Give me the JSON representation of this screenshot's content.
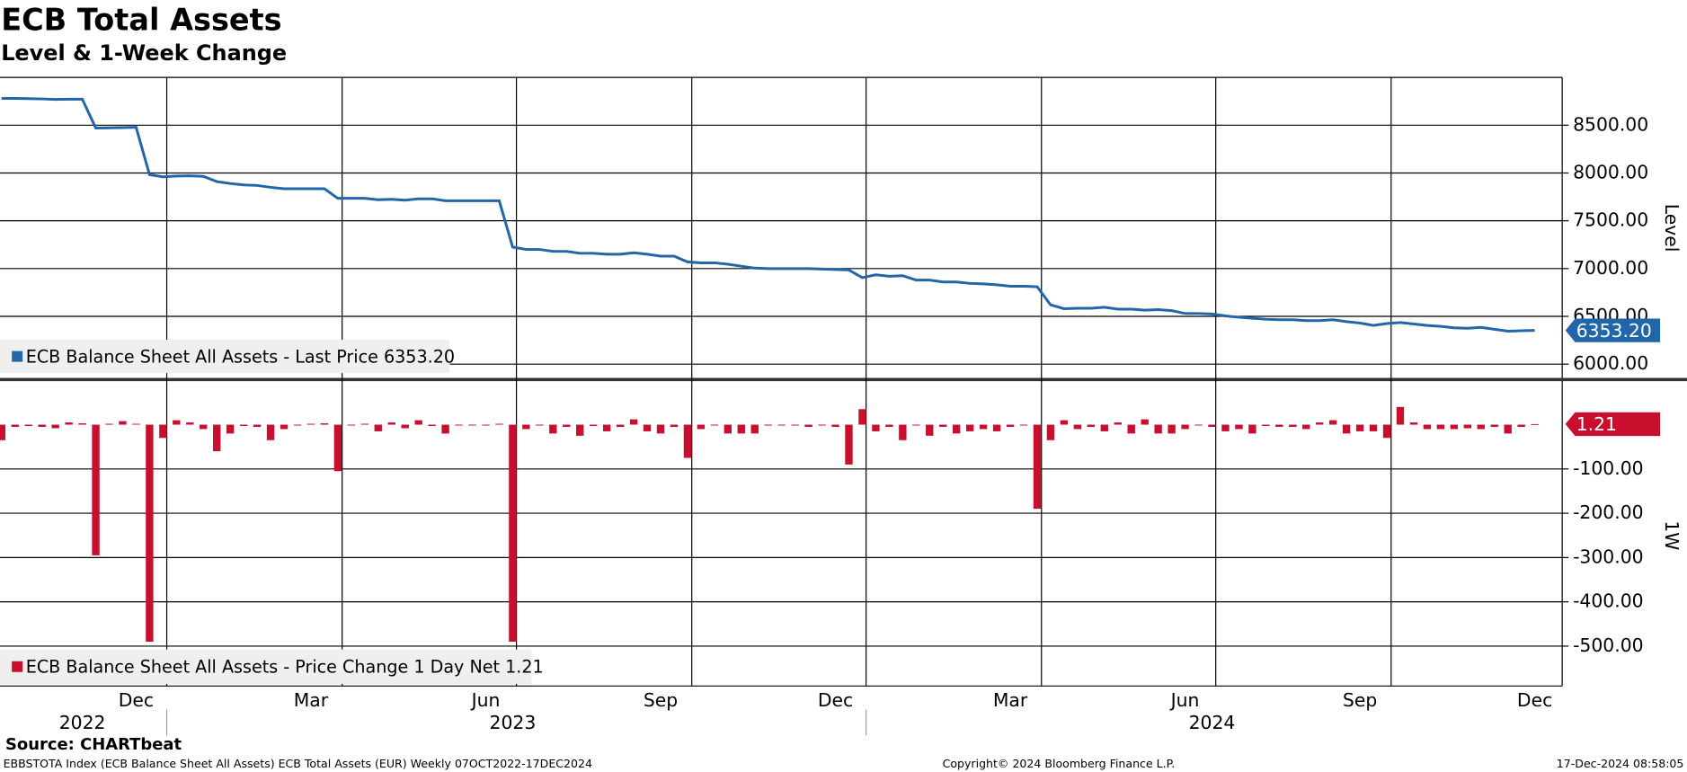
{
  "chart_data": [
    {
      "type": "line",
      "title": "ECB Total Assets",
      "subtitle": "Level & 1-Week Change",
      "y_label": "Level",
      "ylim": [
        5850,
        9000
      ],
      "yticks": [
        {
          "value": 6000,
          "label": "6000.00"
        },
        {
          "value": 6500,
          "label": "6500.00"
        },
        {
          "value": 7000,
          "label": "7000.00"
        },
        {
          "value": 7500,
          "label": "7500.00"
        },
        {
          "value": 8000,
          "label": "8000.00"
        },
        {
          "value": 8500,
          "label": "8500.00"
        }
      ],
      "grid": true,
      "series": [
        {
          "name": "ECB Balance Sheet All Assets - Last Price 6353.20",
          "color": "#2166a8",
          "last_value_label": "6353.20",
          "values": [
            8780,
            8780,
            8778,
            8775,
            8770,
            8772,
            8772,
            8470,
            8472,
            8475,
            8478,
            7982,
            7960,
            7968,
            7970,
            7965,
            7910,
            7890,
            7875,
            7870,
            7850,
            7835,
            7835,
            7835,
            7835,
            7735,
            7735,
            7735,
            7720,
            7725,
            7715,
            7730,
            7730,
            7710,
            7710,
            7710,
            7710,
            7710,
            7225,
            7200,
            7200,
            7180,
            7180,
            7160,
            7160,
            7150,
            7150,
            7165,
            7150,
            7130,
            7130,
            7070,
            7060,
            7060,
            7045,
            7025,
            7005,
            7000,
            7000,
            7000,
            7000,
            6995,
            6990,
            6985,
            6905,
            6935,
            6920,
            6925,
            6880,
            6880,
            6860,
            6860,
            6845,
            6840,
            6830,
            6815,
            6815,
            6810,
            6620,
            6580,
            6585,
            6585,
            6595,
            6575,
            6575,
            6565,
            6570,
            6560,
            6530,
            6530,
            6525,
            6505,
            6490,
            6480,
            6470,
            6465,
            6465,
            6455,
            6455,
            6465,
            6445,
            6430,
            6405,
            6425,
            6435,
            6420,
            6405,
            6395,
            6380,
            6375,
            6385,
            6365,
            6345,
            6350,
            6353.2
          ]
        }
      ]
    },
    {
      "type": "bar",
      "y_label": "1W",
      "categories": [
        null,
        null,
        null,
        null,
        null,
        null,
        null,
        null,
        null,
        null,
        "Dec",
        null,
        null,
        null,
        null,
        null,
        null,
        null,
        null,
        null,
        null,
        null,
        null,
        "Mar",
        null,
        null,
        null,
        null,
        null,
        null,
        null,
        null,
        null,
        null,
        null,
        null,
        "Jun",
        null,
        null,
        null,
        null,
        null,
        null,
        null,
        null,
        null,
        null,
        null,
        null,
        "Sep",
        null,
        null,
        null,
        null,
        null,
        null,
        null,
        null,
        null,
        null,
        null,
        null,
        "Dec",
        null,
        null,
        null,
        null,
        null,
        null,
        null,
        null,
        null,
        null,
        null,
        null,
        "Mar",
        null,
        null,
        null,
        null,
        null,
        null,
        null,
        null,
        null,
        null,
        null,
        null,
        "Jun",
        null,
        null,
        null,
        null,
        null,
        null,
        null,
        null,
        null,
        null,
        null,
        null,
        "Sep",
        null,
        null,
        null,
        null,
        null,
        null,
        null,
        null,
        null,
        null,
        null,
        null,
        "Dec"
      ],
      "year_labels": [
        null,
        null,
        null,
        null,
        null,
        null,
        "2022",
        null,
        null,
        null,
        null,
        null,
        null,
        null,
        null,
        null,
        null,
        null,
        null,
        null,
        null,
        null,
        null,
        null,
        null,
        null,
        null,
        null,
        null,
        null,
        null,
        null,
        null,
        null,
        null,
        null,
        null,
        null,
        "2023",
        null,
        null,
        null,
        null,
        null,
        null,
        null,
        null,
        null,
        null,
        null,
        null,
        null,
        null,
        null,
        null,
        null,
        null,
        null,
        null,
        null,
        null,
        null,
        null,
        null,
        null,
        null,
        null,
        null,
        null,
        null,
        null,
        null,
        null,
        null,
        null,
        null,
        null,
        null,
        null,
        null,
        null,
        null,
        null,
        null,
        null,
        null,
        null,
        null,
        null,
        null,
        "2024",
        null,
        null,
        null,
        null,
        null,
        null,
        null,
        null,
        null,
        null,
        null,
        null,
        null,
        null,
        null,
        null,
        null,
        null,
        null,
        null,
        null,
        null,
        null
      ],
      "ylim": [
        -590,
        97
      ],
      "yticks": [
        {
          "value": -100,
          "label": "-100.00"
        },
        {
          "value": -200,
          "label": "-200.00"
        },
        {
          "value": -300,
          "label": "-300.00"
        },
        {
          "value": -400,
          "label": "-400.00"
        },
        {
          "value": -500,
          "label": "-500.00"
        }
      ],
      "grid": true,
      "series": [
        {
          "name": "ECB Balance Sheet All Assets - Price Change 1 Day Net 1.21",
          "color": "#c8102e",
          "last_value_label": "1.21",
          "values": [
            -35,
            -5,
            -3,
            -5,
            -8,
            5,
            3,
            -295,
            2,
            8,
            2,
            -490,
            -30,
            10,
            5,
            -10,
            -60,
            -20,
            -3,
            -5,
            -35,
            -10,
            0,
            2,
            3,
            -105,
            0,
            2,
            -15,
            5,
            -8,
            10,
            -3,
            -20,
            -2,
            -2,
            -2,
            2,
            -490,
            -10,
            -2,
            -20,
            -5,
            -25,
            -3,
            -15,
            -5,
            12,
            -15,
            -20,
            -5,
            -75,
            -10,
            -2,
            -20,
            -20,
            -20,
            -2,
            0,
            -2,
            -5,
            -2,
            -5,
            -90,
            35,
            -15,
            -5,
            -35,
            0,
            -25,
            -5,
            -20,
            -15,
            -10,
            -15,
            -5,
            -2,
            -190,
            -35,
            10,
            -10,
            -5,
            -15,
            5,
            -20,
            12,
            -20,
            -20,
            -10,
            0,
            -5,
            -15,
            -10,
            -20,
            -3,
            -5,
            -5,
            -10,
            5,
            10,
            -20,
            -15,
            -15,
            -30,
            40,
            5,
            -10,
            -10,
            -10,
            -8,
            -10,
            -5,
            -20,
            -5,
            1.21
          ]
        }
      ]
    }
  ],
  "source": "Source: CHARTbeat",
  "footer": {
    "left": "EBBSTOTA Index (ECB Balance Sheet All Assets) ECB Total Assets (EUR)  Weekly 07OCT2022-17DEC2024",
    "center": "Copyright© 2024 Bloomberg Finance L.P.",
    "right": "17-Dec-2024 08:58:05"
  }
}
